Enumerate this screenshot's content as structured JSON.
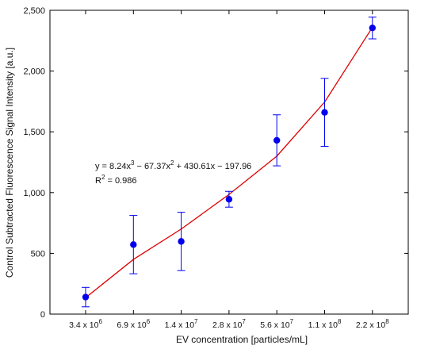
{
  "chart_data": {
    "type": "scatter",
    "xlabel": "EV concentration [particles/mL]",
    "ylabel": "Control Subtracted Fluorescence Signal Intensity [a.u.]",
    "ylim": [
      0,
      2500
    ],
    "y_ticks": [
      "0",
      "500",
      "1,000",
      "1,500",
      "2,000",
      "2,500"
    ],
    "y_tick_values": [
      0,
      500,
      1000,
      1500,
      2000,
      2500
    ],
    "categories": [
      {
        "mantissa": "3.4",
        "exp": "6"
      },
      {
        "mantissa": "6.9",
        "exp": "6"
      },
      {
        "mantissa": "1.4",
        "exp": "7"
      },
      {
        "mantissa": "2.8",
        "exp": "7"
      },
      {
        "mantissa": "5.6",
        "exp": "7"
      },
      {
        "mantissa": "1.1",
        "exp": "8"
      },
      {
        "mantissa": "2.2",
        "exp": "8"
      }
    ],
    "grid": false,
    "series": [
      {
        "type": "scatter",
        "values": [
          140,
          572,
          598,
          945,
          1430,
          1660,
          2355
        ],
        "error": [
          80,
          240,
          240,
          65,
          210,
          280,
          90
        ],
        "color": "#0000ee"
      },
      {
        "type": "line",
        "values": [
          135,
          450,
          700,
          985,
          1300,
          1745,
          2360
        ],
        "color": "#e00000"
      }
    ],
    "annotation": {
      "equation": {
        "prefix": "y =  8.24x",
        "exp1": "3",
        "part2": " − 67.37x",
        "exp2": "2",
        "part3": " + 430.61x  − 197.96"
      },
      "r2": {
        "prefix": "R",
        "exp": "2",
        "suffix": " = 0.986"
      }
    }
  }
}
